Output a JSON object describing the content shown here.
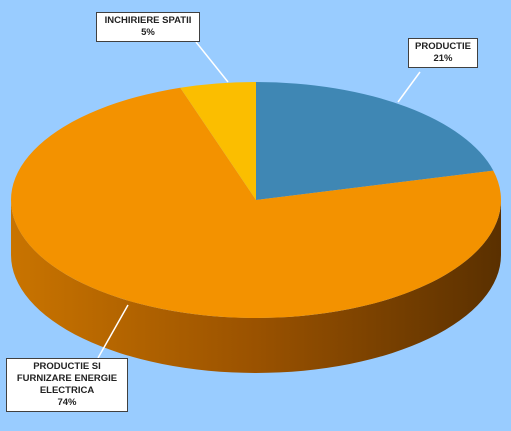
{
  "chart_data": {
    "type": "pie",
    "categories": [
      "PRODUCTIE",
      "PRODUCTIE SI FURNIZARE ENERGIE ELECTRICA",
      "INCHIRIERE SPATII"
    ],
    "values": [
      21,
      74,
      5
    ],
    "value_labels": [
      "21%",
      "74%",
      "5%"
    ],
    "colors": [
      "#3f87b4",
      "#f39200",
      "#fbbe00"
    ]
  }
}
